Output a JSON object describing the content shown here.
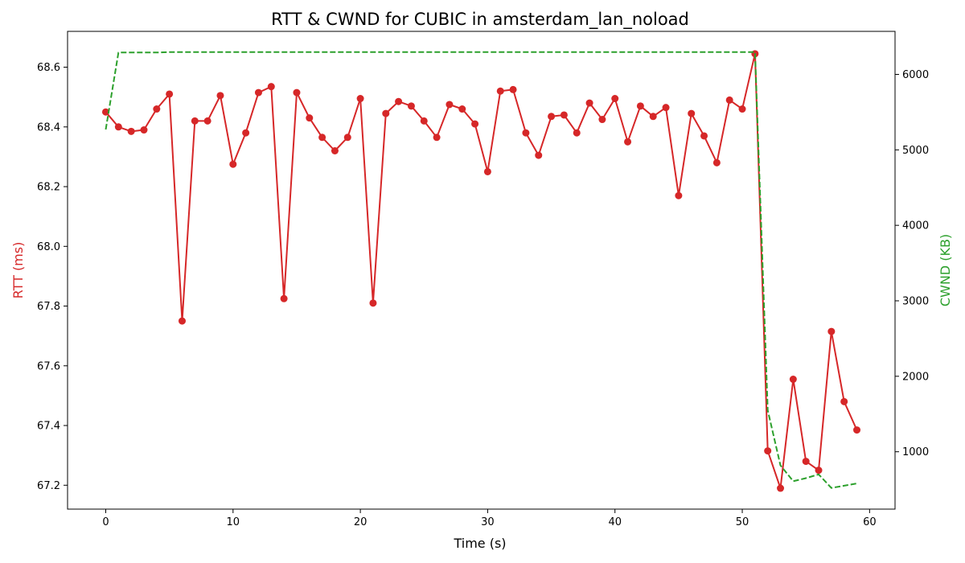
{
  "chart_data": {
    "type": "line",
    "title": "RTT & CWND for CUBIC in amsterdam_lan_noload",
    "xlabel": "Time (s)",
    "ylabel_left": "RTT (ms)",
    "ylabel_right": "CWND (KB)",
    "xlim": [
      -3,
      62
    ],
    "ylim_left": [
      67.12,
      68.72
    ],
    "ylim_right": [
      240,
      6570
    ],
    "xticks": [
      0,
      10,
      20,
      30,
      40,
      50,
      60
    ],
    "yticks_left": [
      67.2,
      67.4,
      67.6,
      67.8,
      68.0,
      68.2,
      68.4,
      68.6
    ],
    "yticks_right": [
      1000,
      2000,
      3000,
      4000,
      5000,
      6000
    ],
    "grid": false,
    "colors": {
      "rtt": "#d62728",
      "cwnd": "#2ca02c"
    },
    "series": [
      {
        "key": "rtt",
        "axis": "left",
        "style": "solid-markers",
        "x": [
          0,
          1,
          2,
          3,
          4,
          5,
          6,
          7,
          8,
          9,
          10,
          11,
          12,
          13,
          14,
          15,
          16,
          17,
          18,
          19,
          20,
          21,
          22,
          23,
          24,
          25,
          26,
          27,
          28,
          29,
          30,
          31,
          32,
          33,
          34,
          35,
          36,
          37,
          38,
          39,
          40,
          41,
          42,
          43,
          44,
          45,
          46,
          47,
          48,
          49,
          50,
          51,
          52,
          53,
          54,
          55,
          56,
          57,
          58,
          59
        ],
        "values": [
          68.45,
          68.4,
          68.385,
          68.39,
          68.46,
          68.51,
          67.75,
          68.42,
          68.42,
          68.505,
          68.275,
          68.38,
          68.515,
          68.535,
          67.825,
          68.515,
          68.43,
          68.365,
          68.32,
          68.365,
          68.495,
          67.81,
          68.445,
          68.485,
          68.47,
          68.42,
          68.365,
          68.475,
          68.46,
          68.41,
          68.25,
          68.52,
          68.525,
          68.38,
          68.305,
          68.435,
          68.44,
          68.38,
          68.48,
          68.425,
          68.495,
          68.35,
          68.47,
          68.435,
          68.465,
          68.17,
          68.445,
          68.37,
          68.28,
          68.49,
          68.46,
          68.645,
          67.315,
          67.19,
          67.555,
          67.28,
          67.25,
          67.715,
          67.48,
          67.385
        ]
      },
      {
        "key": "cwnd",
        "axis": "right",
        "style": "dashed",
        "x": [
          0,
          1,
          2,
          3,
          4,
          5,
          6,
          7,
          8,
          9,
          10,
          11,
          12,
          13,
          14,
          15,
          16,
          17,
          18,
          19,
          20,
          21,
          22,
          23,
          24,
          25,
          26,
          27,
          28,
          29,
          30,
          31,
          32,
          33,
          34,
          35,
          36,
          37,
          38,
          39,
          40,
          41,
          42,
          43,
          44,
          45,
          46,
          47,
          48,
          49,
          50,
          51,
          52,
          53,
          54,
          55,
          56,
          57,
          58,
          59
        ],
        "values": [
          5270,
          6290,
          6290,
          6290,
          6290,
          6295,
          6295,
          6295,
          6295,
          6295,
          6295,
          6295,
          6295,
          6295,
          6295,
          6295,
          6295,
          6295,
          6295,
          6295,
          6295,
          6295,
          6295,
          6295,
          6295,
          6295,
          6295,
          6295,
          6295,
          6295,
          6295,
          6295,
          6295,
          6295,
          6295,
          6295,
          6295,
          6295,
          6295,
          6295,
          6295,
          6295,
          6295,
          6295,
          6295,
          6295,
          6295,
          6295,
          6295,
          6295,
          6295,
          6295,
          1550,
          820,
          610,
          650,
          700,
          520,
          550,
          580
        ]
      }
    ]
  }
}
